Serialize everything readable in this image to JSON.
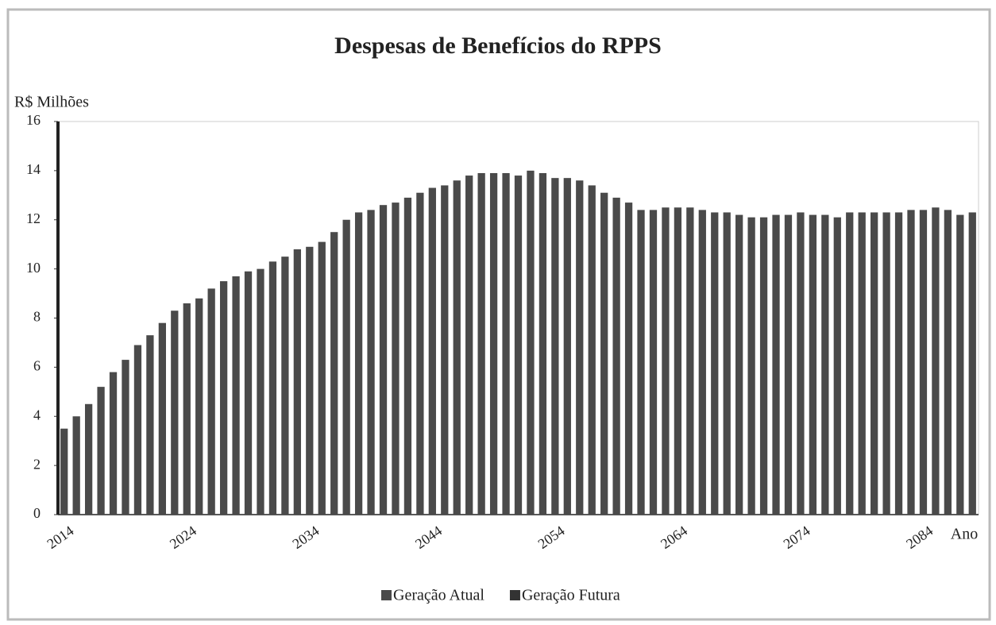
{
  "chart_data": {
    "type": "stacked_bar",
    "title": "Despesas de Benefícios do RPPS",
    "y_label": "R$ Milhões",
    "x_label": "Ano",
    "categories": [
      "2014",
      null,
      null,
      null,
      null,
      null,
      null,
      null,
      null,
      null,
      "2024",
      null,
      null,
      null,
      null,
      null,
      null,
      null,
      null,
      null,
      "2034",
      null,
      null,
      null,
      null,
      null,
      null,
      null,
      null,
      null,
      "2044",
      null,
      null,
      null,
      null,
      null,
      null,
      null,
      null,
      null,
      "2054",
      null,
      null,
      null,
      null,
      null,
      null,
      null,
      null,
      null,
      "2064",
      null,
      null,
      null,
      null,
      null,
      null,
      null,
      null,
      null,
      "2074",
      null,
      null,
      null,
      null,
      null,
      null,
      null,
      null,
      null,
      "2084",
      null,
      null,
      null,
      null
    ],
    "series": [
      {
        "name": "Geração Atual",
        "color": "#4a4a4a",
        "values": [
          3.5,
          4.0,
          4.5,
          5.2,
          5.8,
          6.3,
          6.9,
          7.3,
          7.8,
          8.3,
          8.6,
          8.8,
          9.2,
          9.5,
          9.7,
          9.9,
          10.0,
          10.3,
          10.5,
          10.8,
          10.9,
          11.1,
          11.5,
          12.0,
          12.3,
          12.4,
          12.6,
          12.7,
          12.9,
          13.1,
          13.3,
          13.4,
          13.6,
          13.8,
          13.9,
          13.9,
          13.9,
          13.8,
          14.0,
          13.9,
          13.7,
          13.7,
          13.6,
          13.4,
          13.1,
          12.9,
          12.7,
          12.4,
          12.4,
          12.5,
          12.5,
          12.5,
          12.4,
          12.3,
          12.3,
          12.2,
          12.1,
          12.1,
          12.2,
          12.2,
          12.3,
          12.2,
          12.2,
          12.1,
          12.3,
          12.3,
          12.3,
          12.3,
          12.3,
          12.4,
          12.4,
          12.5,
          12.4,
          12.2,
          12.3
        ]
      },
      {
        "name": "Geração Futura",
        "color": "#333333",
        "values": [
          0,
          0,
          0,
          0,
          0,
          0,
          0,
          0,
          0,
          0,
          0,
          0,
          0,
          0,
          0,
          0,
          0,
          0,
          0,
          0,
          0,
          0,
          0,
          0,
          0,
          0,
          0,
          0,
          0,
          0,
          0,
          0,
          0,
          0,
          0,
          0,
          0,
          0,
          0,
          0,
          0,
          0,
          0,
          0,
          0,
          0,
          0,
          0,
          0,
          0,
          0,
          0,
          0,
          0,
          0,
          0,
          0,
          0,
          0,
          0,
          0,
          0,
          0,
          0,
          0,
          0,
          0,
          0,
          0,
          0,
          0,
          0,
          0,
          0,
          0
        ]
      }
    ],
    "ylim": [
      0,
      16
    ],
    "yticks": [
      0,
      2,
      4,
      6,
      8,
      10,
      12,
      14,
      16
    ],
    "grid": false,
    "legend": "bottom"
  }
}
